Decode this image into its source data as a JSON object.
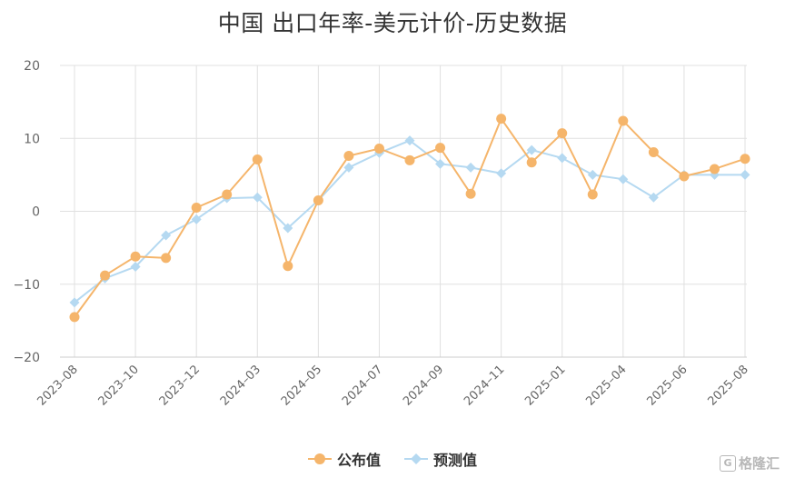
{
  "chart_data": {
    "type": "line",
    "title": "中国 出口年率-美元计价-历史数据",
    "xlabel": "",
    "ylabel": "",
    "ylim": [
      -20,
      20
    ],
    "yticks": [
      -20,
      -10,
      0,
      10,
      20
    ],
    "x": [
      "2023-08",
      "2023-09",
      "2023-10",
      "2023-11",
      "2023-12",
      "2024-01",
      "2024-03",
      "2024-04",
      "2024-05",
      "2024-06",
      "2024-07",
      "2024-08",
      "2024-09",
      "2024-10",
      "2024-11",
      "2024-12",
      "2025-01",
      "2025-03",
      "2025-04",
      "2025-05",
      "2025-06",
      "2025-07",
      "2025-08"
    ],
    "xtick_labels": [
      "2023-08",
      "2023-10",
      "2023-12",
      "2024-03",
      "2024-05",
      "2024-07",
      "2024-09",
      "2024-11",
      "2025-01",
      "2025-04",
      "2025-06",
      "2025-08"
    ],
    "series": [
      {
        "name": "公布值",
        "color": "#f5b56b",
        "marker": "circle",
        "values": [
          -14.5,
          -8.8,
          -6.2,
          -6.4,
          0.5,
          2.3,
          7.1,
          -7.5,
          1.5,
          7.6,
          8.6,
          7.0,
          8.7,
          2.4,
          12.7,
          6.7,
          10.7,
          2.3,
          12.4,
          8.1,
          4.8,
          5.8,
          7.2
        ]
      },
      {
        "name": "预测值",
        "color": "#b5d9f1",
        "marker": "diamond",
        "values": [
          -12.5,
          -9.2,
          -7.6,
          -3.3,
          -1.1,
          1.8,
          1.9,
          -2.3,
          1.5,
          6.0,
          8.0,
          9.7,
          6.5,
          6.0,
          5.2,
          8.4,
          7.3,
          5.0,
          4.4,
          1.9,
          5.0,
          5.0,
          5.0
        ]
      }
    ],
    "grid": true,
    "legend_position": "bottom-center"
  },
  "watermark": {
    "icon": "G",
    "text": "格隆汇"
  }
}
